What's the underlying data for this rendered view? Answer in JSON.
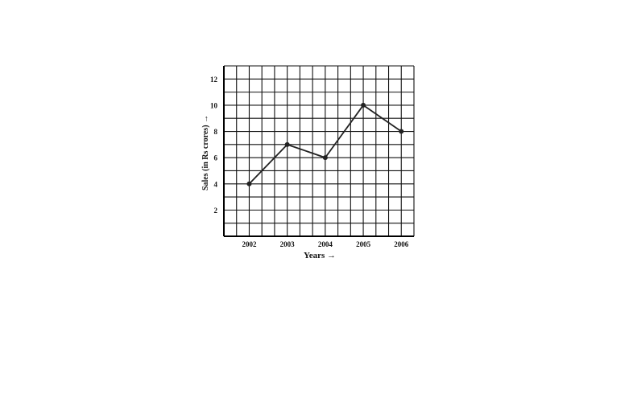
{
  "chart_data": {
    "type": "line",
    "title": "",
    "xlabel": "Years →",
    "ylabel": "Sales (in Rs crores) →",
    "categories": [
      "2002",
      "2003",
      "2004",
      "2005",
      "2006"
    ],
    "values": [
      4,
      7,
      6,
      10,
      8
    ],
    "yticks": [
      "2",
      "4",
      "6",
      "8",
      "10",
      "12"
    ],
    "ylim": [
      0,
      13
    ],
    "grid": true,
    "legend": "none",
    "colors": {
      "line": "#222222",
      "grid": "#111111",
      "text": "#111111"
    }
  }
}
